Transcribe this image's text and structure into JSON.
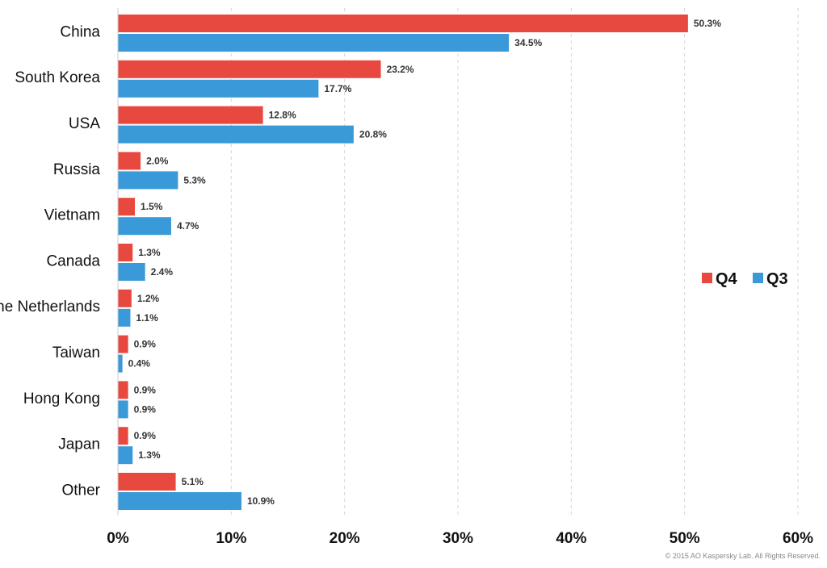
{
  "chart_data": {
    "type": "bar",
    "orientation": "horizontal",
    "categories": [
      "China",
      "South Korea",
      "USA",
      "Russia",
      "Vietnam",
      "Canada",
      "the Netherlands",
      "Taiwan",
      "Hong Kong",
      "Japan",
      "Other"
    ],
    "series": [
      {
        "name": "Q4",
        "color": "#e8493f",
        "values": [
          50.3,
          23.2,
          12.8,
          2.0,
          1.5,
          1.3,
          1.2,
          0.9,
          0.9,
          0.9,
          5.1
        ],
        "labels": [
          "50.3%",
          "23.2%",
          "12.8%",
          "2.0%",
          "1.5%",
          "1.3%",
          "1.2%",
          "0.9%",
          "0.9%",
          "0.9%",
          "5.1%"
        ]
      },
      {
        "name": "Q3",
        "color": "#3a99d8",
        "values": [
          34.5,
          17.7,
          20.8,
          5.3,
          4.7,
          2.4,
          1.1,
          0.4,
          0.9,
          1.3,
          10.9
        ],
        "labels": [
          "34.5%",
          "17.7%",
          "20.8%",
          "5.3%",
          "4.7%",
          "2.4%",
          "1.1%",
          "0.4%",
          "0.9%",
          "1.3%",
          "10.9%"
        ]
      }
    ],
    "xlim": [
      0,
      60
    ],
    "xticks": [
      0,
      10,
      20,
      30,
      40,
      50,
      60
    ],
    "xtick_labels": [
      "0%",
      "10%",
      "20%",
      "30%",
      "40%",
      "50%",
      "60%"
    ],
    "grid": "vertical dashed",
    "legend_position": "right"
  },
  "footer": {
    "copyright": "© 2015 AO Kaspersky Lab. All Rights Reserved."
  }
}
